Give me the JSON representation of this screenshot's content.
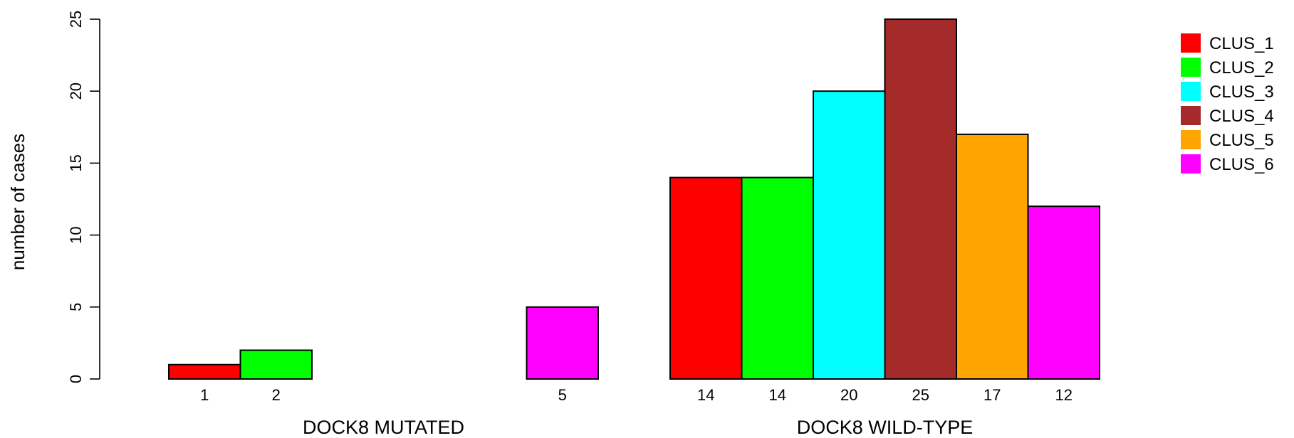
{
  "chart_data": {
    "type": "bar",
    "ylabel": "number of cases",
    "ylim": [
      0,
      25
    ],
    "yticks": [
      0,
      5,
      10,
      15,
      20,
      25
    ],
    "groups": [
      "DOCK8 MUTATED",
      "DOCK8 WILD-TYPE"
    ],
    "series": [
      {
        "name": "CLUS_1",
        "color": "#FF0000",
        "values": [
          1,
          14
        ]
      },
      {
        "name": "CLUS_2",
        "color": "#00FF00",
        "values": [
          2,
          14
        ]
      },
      {
        "name": "CLUS_3",
        "color": "#00FFFF",
        "values": [
          0,
          20
        ]
      },
      {
        "name": "CLUS_4",
        "color": "#A52A2A",
        "values": [
          0,
          25
        ]
      },
      {
        "name": "CLUS_5",
        "color": "#FFA500",
        "values": [
          0,
          17
        ]
      },
      {
        "name": "CLUS_6",
        "color": "#FF00FF",
        "values": [
          5,
          12
        ]
      }
    ],
    "bar_labels": [
      [
        "1",
        "2",
        "",
        "",
        "",
        "5"
      ],
      [
        "14",
        "14",
        "20",
        "25",
        "17",
        "12"
      ]
    ],
    "legend_position": "top-right",
    "grid": false
  }
}
